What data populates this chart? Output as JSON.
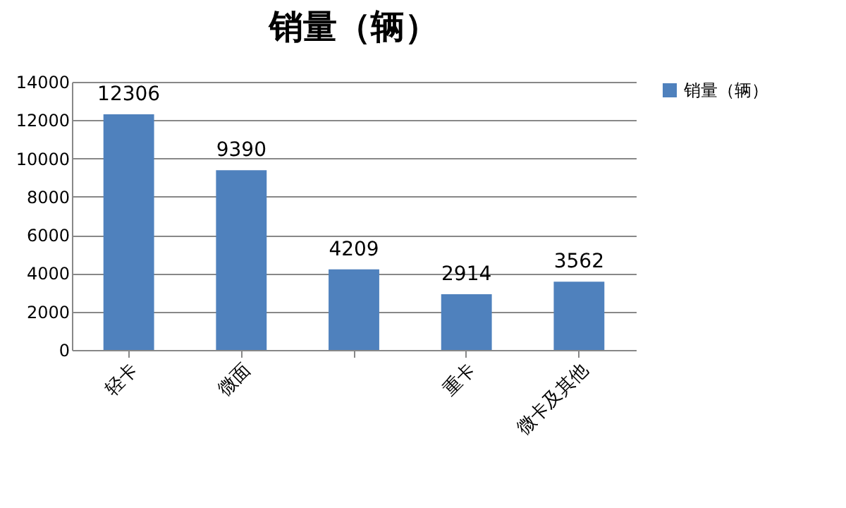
{
  "chart_data": {
    "type": "bar",
    "title": "销量（辆）",
    "categories": [
      "轻卡",
      "微面",
      null,
      "重卡",
      "微卡及其他"
    ],
    "series": [
      {
        "name": "销量（辆）",
        "color": "#4f81bd",
        "values": [
          12306,
          9390,
          4209,
          2914,
          3562
        ]
      }
    ],
    "ylim": [
      0,
      14000
    ],
    "yticks": [
      0,
      2000,
      4000,
      6000,
      8000,
      10000,
      12000,
      14000
    ],
    "grid": "y",
    "legend": "right",
    "data_labels": true
  }
}
